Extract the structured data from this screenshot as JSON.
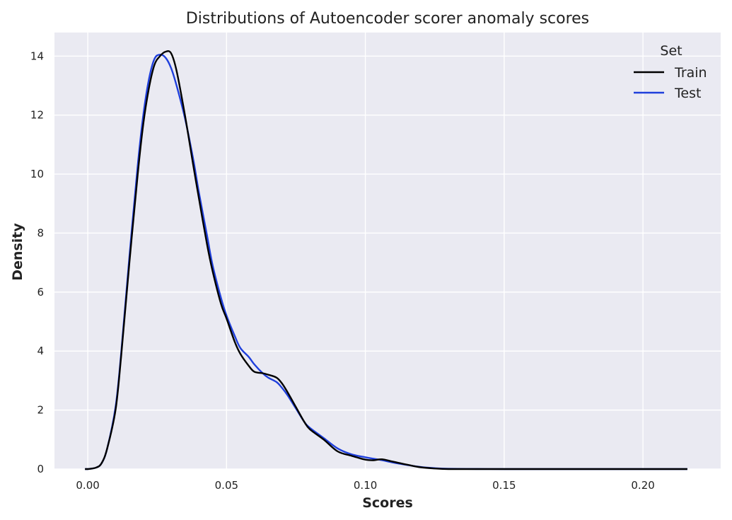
{
  "chart_data": {
    "type": "line",
    "title": "Distributions of Autoencoder scorer anomaly scores",
    "xlabel": "Scores",
    "ylabel": "Density",
    "xlim": [
      -0.012,
      0.228
    ],
    "ylim": [
      0,
      14.8
    ],
    "x_ticks": [
      0.0,
      0.05,
      0.1,
      0.15,
      0.2
    ],
    "x_tick_labels": [
      "0.00",
      "0.05",
      "0.10",
      "0.15",
      "0.20"
    ],
    "y_ticks": [
      0,
      2,
      4,
      6,
      8,
      10,
      12,
      14
    ],
    "y_tick_labels": [
      "0",
      "2",
      "4",
      "6",
      "8",
      "10",
      "12",
      "14"
    ],
    "grid": true,
    "background": "#eaeaf2",
    "legend": {
      "title": "Set",
      "placement": "top-right"
    },
    "series": [
      {
        "name": "Train",
        "color": "#000000",
        "x": [
          -0.001,
          0.0,
          0.003,
          0.005,
          0.007,
          0.01,
          0.012,
          0.015,
          0.018,
          0.02,
          0.022,
          0.024,
          0.026,
          0.028,
          0.03,
          0.032,
          0.035,
          0.038,
          0.04,
          0.043,
          0.045,
          0.048,
          0.05,
          0.053,
          0.055,
          0.058,
          0.06,
          0.063,
          0.065,
          0.068,
          0.07,
          0.072,
          0.075,
          0.078,
          0.08,
          0.085,
          0.09,
          0.095,
          0.1,
          0.103,
          0.106,
          0.11,
          0.115,
          0.12,
          0.125,
          0.13,
          0.14,
          0.15,
          0.16,
          0.18,
          0.2,
          0.216
        ],
        "y": [
          0.0,
          0.0,
          0.05,
          0.2,
          0.7,
          2.0,
          3.8,
          7.0,
          10.0,
          11.7,
          12.9,
          13.7,
          14.0,
          14.15,
          14.1,
          13.5,
          12.0,
          10.3,
          9.2,
          7.6,
          6.7,
          5.6,
          5.1,
          4.3,
          3.9,
          3.5,
          3.3,
          3.25,
          3.2,
          3.1,
          2.9,
          2.6,
          2.1,
          1.6,
          1.35,
          1.0,
          0.6,
          0.45,
          0.32,
          0.3,
          0.33,
          0.25,
          0.15,
          0.06,
          0.02,
          0.0,
          0.0,
          0.0,
          0.0,
          0.0,
          0.0,
          0.0
        ]
      },
      {
        "name": "Test",
        "color": "#1f3fdc",
        "x": [
          -0.001,
          0.0,
          0.003,
          0.005,
          0.007,
          0.01,
          0.012,
          0.015,
          0.018,
          0.02,
          0.022,
          0.024,
          0.026,
          0.028,
          0.03,
          0.032,
          0.035,
          0.038,
          0.04,
          0.043,
          0.045,
          0.048,
          0.05,
          0.053,
          0.055,
          0.058,
          0.06,
          0.063,
          0.065,
          0.068,
          0.07,
          0.072,
          0.075,
          0.078,
          0.08,
          0.085,
          0.09,
          0.095,
          0.1,
          0.103,
          0.106,
          0.11,
          0.115,
          0.12,
          0.125,
          0.13,
          0.14,
          0.15,
          0.16,
          0.18,
          0.2,
          0.216
        ],
        "y": [
          0.0,
          0.0,
          0.05,
          0.2,
          0.7,
          2.1,
          3.9,
          7.2,
          10.3,
          12.0,
          13.2,
          13.9,
          14.05,
          13.95,
          13.6,
          13.0,
          11.9,
          10.5,
          9.4,
          7.9,
          6.9,
          5.8,
          5.2,
          4.5,
          4.1,
          3.8,
          3.55,
          3.25,
          3.1,
          2.95,
          2.75,
          2.5,
          2.05,
          1.6,
          1.4,
          1.05,
          0.7,
          0.5,
          0.4,
          0.35,
          0.3,
          0.22,
          0.14,
          0.07,
          0.03,
          0.01,
          0.003,
          0.0,
          0.0,
          0.0,
          0.0,
          0.0
        ]
      }
    ]
  }
}
